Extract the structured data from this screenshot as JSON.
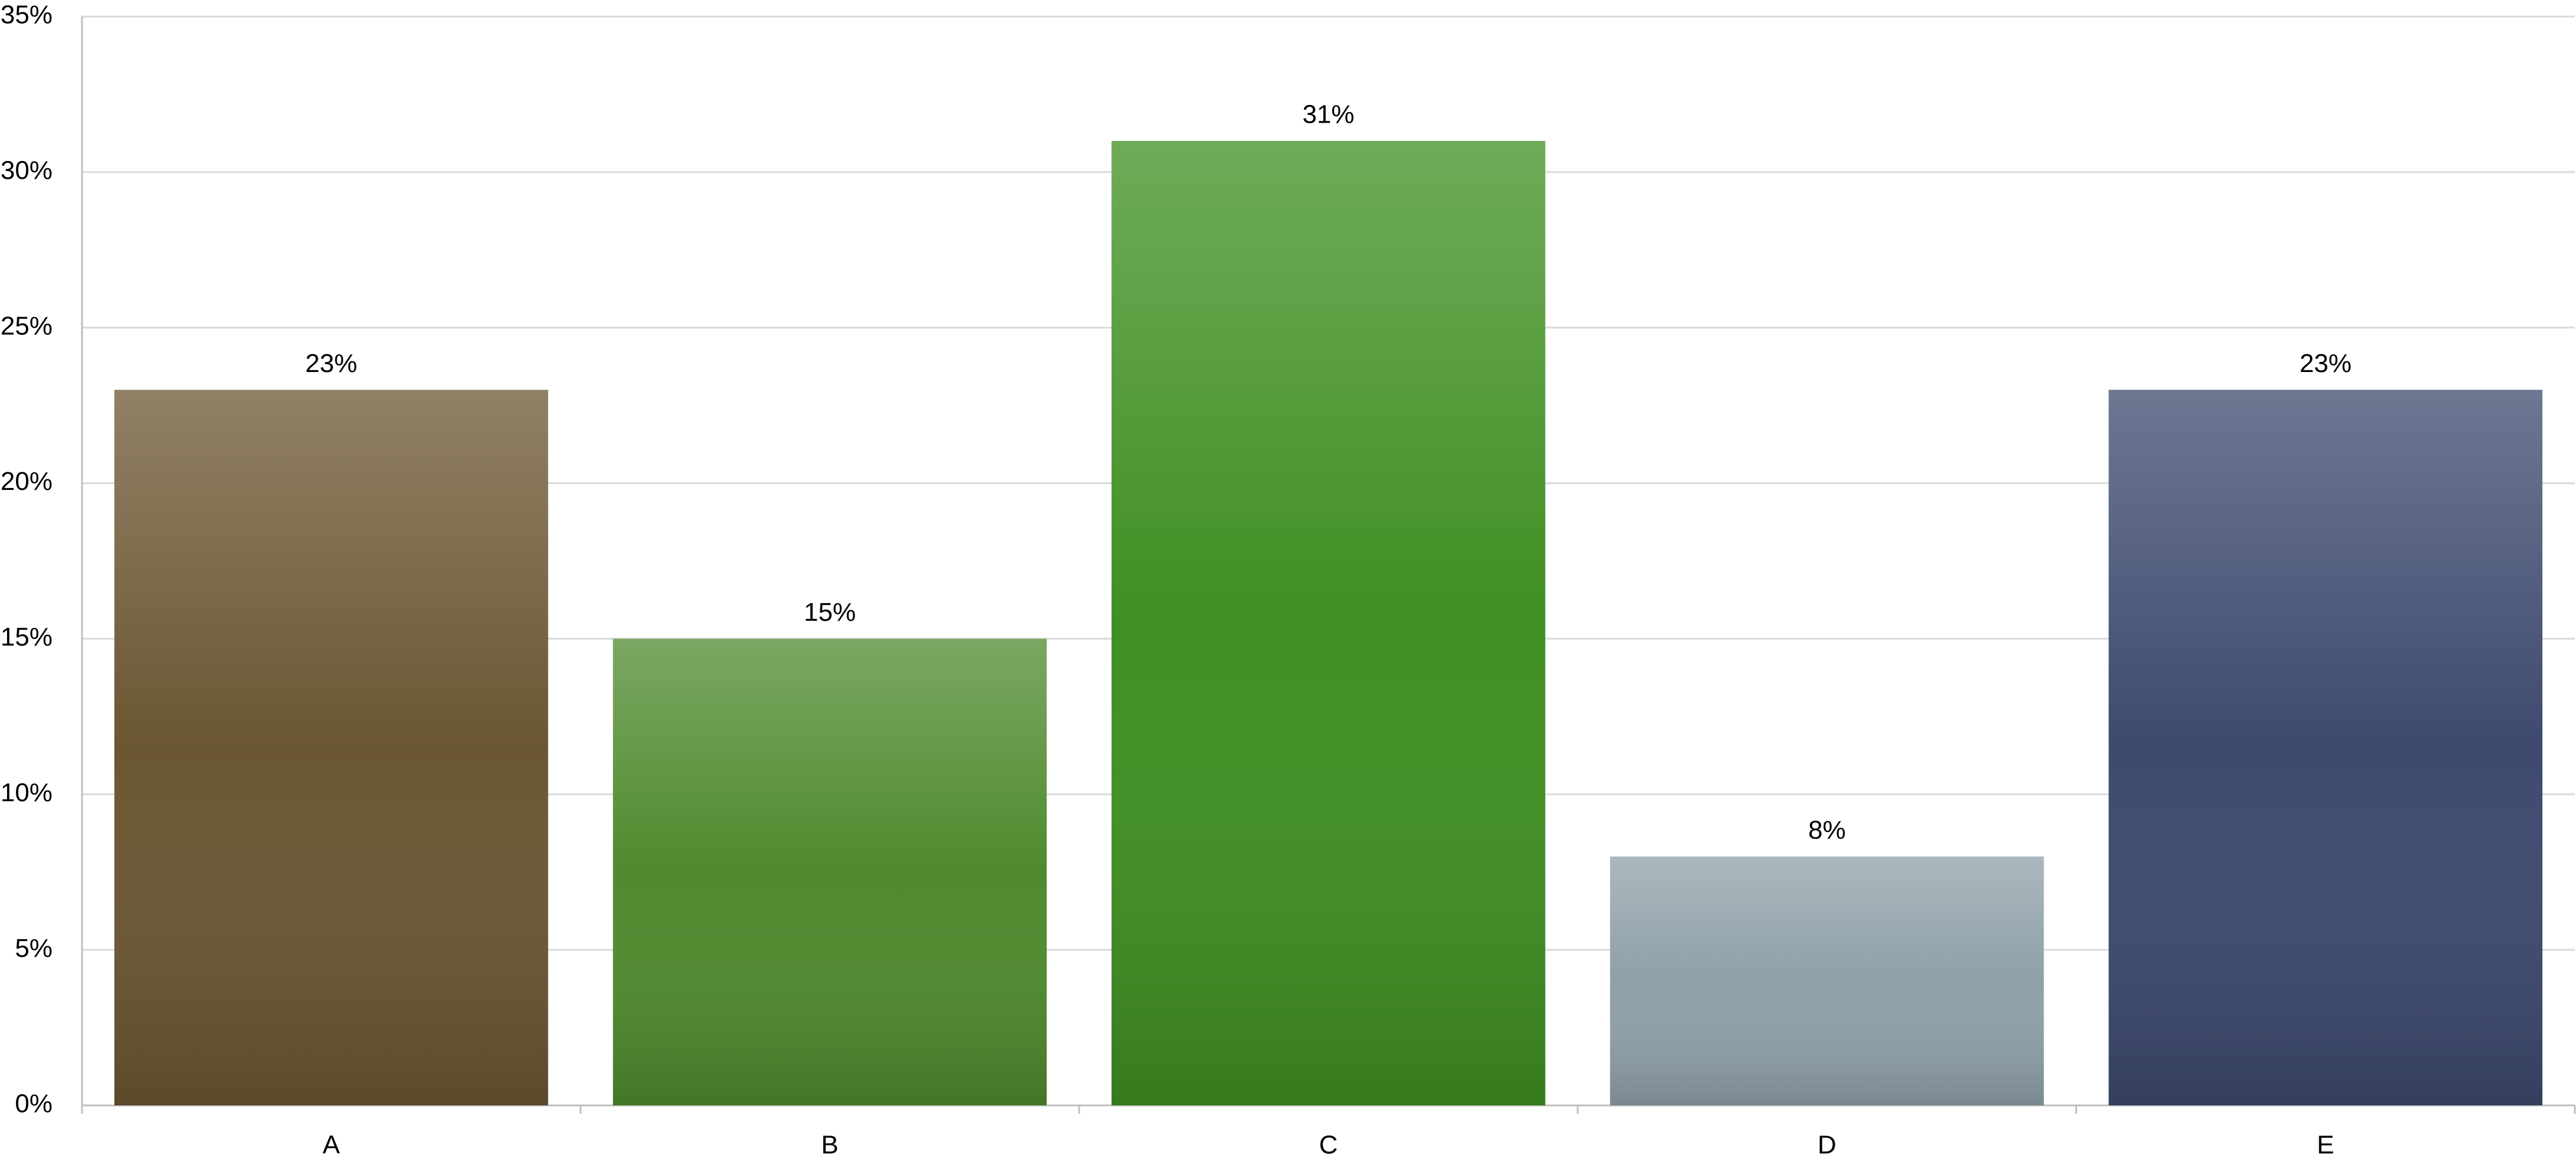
{
  "chart_data": {
    "type": "bar",
    "categories": [
      "A",
      "B",
      "C",
      "D",
      "E"
    ],
    "values": [
      23,
      15,
      31,
      8,
      23
    ],
    "value_labels": [
      "23%",
      "15%",
      "31%",
      "8%",
      "23%"
    ],
    "colors": [
      "#6b5632",
      "#4f8a2e",
      "#3f8f22",
      "#8fa0a8",
      "#3d4a6e"
    ],
    "ylim": [
      0,
      35
    ],
    "yticks": [
      {
        "value": 0,
        "label": "0%"
      },
      {
        "value": 5,
        "label": "5%"
      },
      {
        "value": 10,
        "label": "10%"
      },
      {
        "value": 15,
        "label": "15%"
      },
      {
        "value": 20,
        "label": "20%"
      },
      {
        "value": 25,
        "label": "25%"
      },
      {
        "value": 30,
        "label": "30%"
      },
      {
        "value": 35,
        "label": "35%"
      }
    ],
    "grid": true
  }
}
